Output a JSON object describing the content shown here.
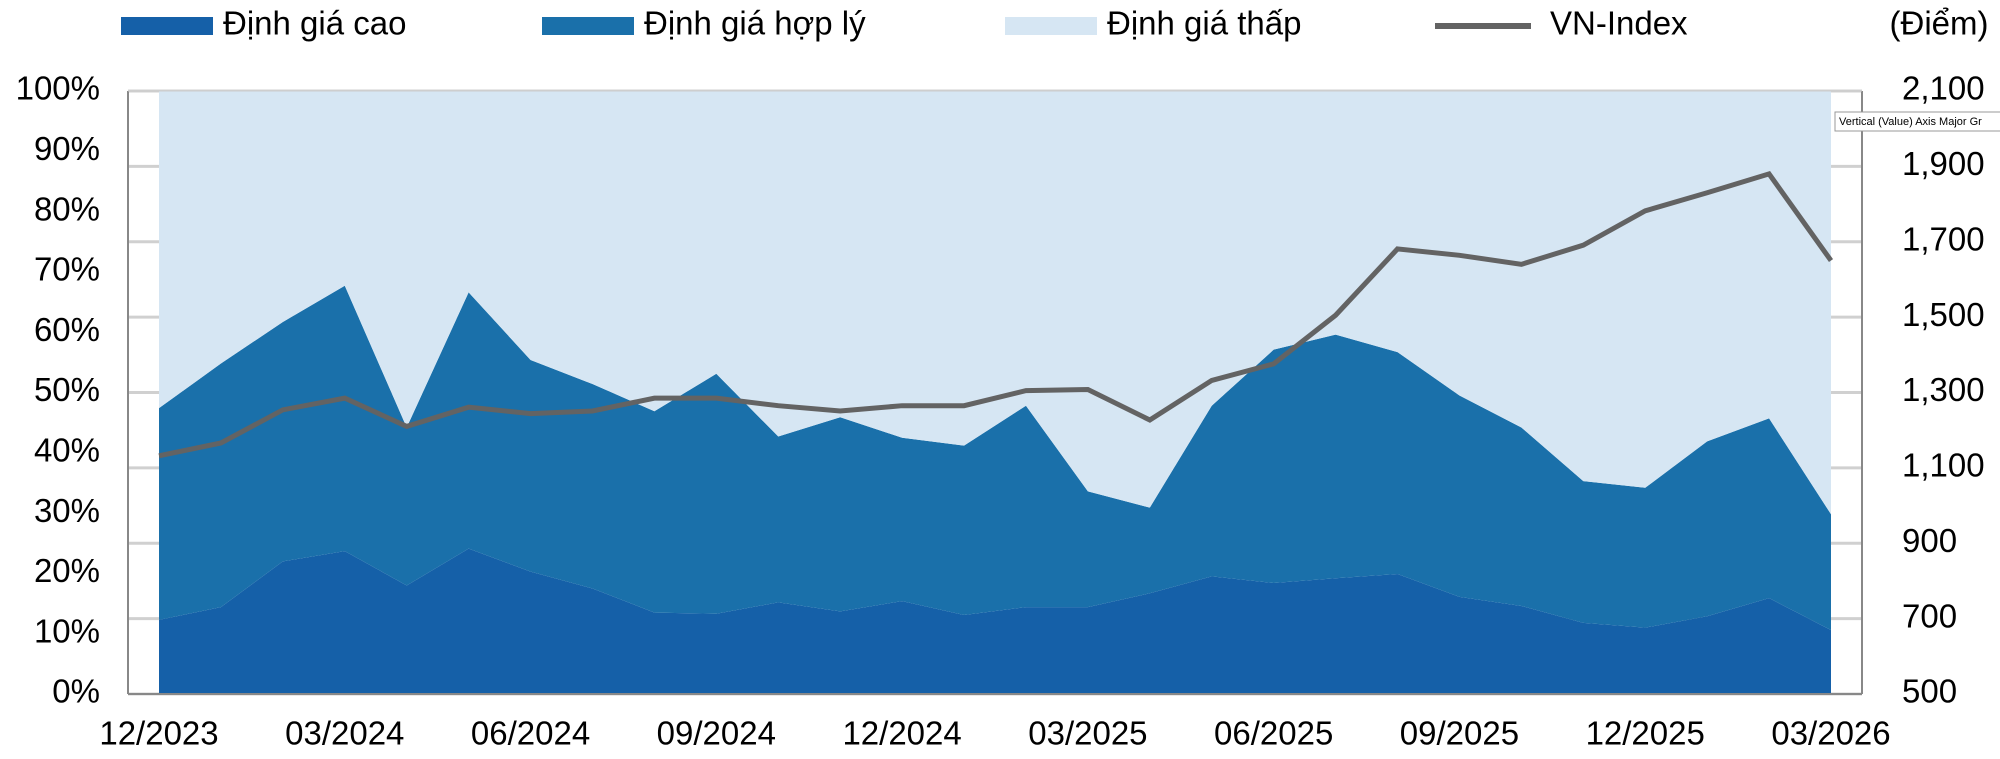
{
  "chart_data": {
    "type": "area",
    "categories": [
      "12/2023",
      null,
      null,
      "03/2024",
      null,
      null,
      "06/2024",
      null,
      null,
      "09/2024",
      null,
      null,
      "12/2024",
      null,
      null,
      "03/2025",
      null,
      null,
      "06/2025",
      null,
      null,
      "09/2025",
      null,
      null,
      "12/2025",
      null,
      null,
      "03/2026"
    ],
    "stacked": true,
    "series": [
      {
        "name": "Định giá cao",
        "color": "#1560a8",
        "values": [
          12.3,
          14.4,
          22,
          23.7,
          18,
          24.1,
          20.3,
          17.5,
          13.5,
          13.3,
          15.2,
          13.7,
          15.4,
          13.1,
          14.4,
          14.4,
          16.7,
          19.5,
          18.4,
          19.2,
          19.9,
          16.1,
          14.6,
          11.8,
          11,
          12.9,
          15.9,
          10.6
        ]
      },
      {
        "name": "Định giá hợp lý",
        "color": "#1a70aa",
        "values": [
          35.1,
          40.4,
          39.7,
          44.0,
          26.2,
          42.5,
          35.1,
          33.9,
          33.4,
          39.8,
          27.5,
          32.2,
          27.1,
          28.1,
          33.4,
          19.2,
          14.2,
          28.3,
          38.7,
          40.4,
          36.8,
          33.4,
          29.6,
          23.5,
          23.2,
          29.0,
          29.8,
          19.2
        ]
      },
      {
        "name": "Định giá thấp",
        "color": "#d6e6f3",
        "values": [
          52.6,
          45.2,
          38.3,
          32.3,
          55.8,
          33.4,
          44.6,
          48.6,
          53.1,
          46.9,
          57.3,
          54.1,
          57.5,
          58.8,
          52.2,
          66.4,
          69.1,
          52.2,
          42.9,
          40.4,
          43.3,
          50.5,
          55.8,
          64.7,
          65.8,
          58.1,
          54.3,
          70.2
        ]
      },
      {
        "name": "VN-Index",
        "color": "#636363",
        "type": "line",
        "axis": "y2",
        "values": [
          1132,
          1166,
          1254,
          1285,
          1210,
          1261,
          1244,
          1251,
          1285,
          1285,
          1265,
          1251,
          1265,
          1265,
          1305,
          1308,
          1227,
          1332,
          1376,
          1505,
          1681,
          1664,
          1640,
          1691,
          1782,
          1830,
          1880,
          1650
        ]
      }
    ],
    "ylim": [
      0,
      100
    ],
    "yticks": [
      {
        "value": 0,
        "label": "0%"
      },
      {
        "value": 10,
        "label": "10%"
      },
      {
        "value": 20,
        "label": "20%"
      },
      {
        "value": 30,
        "label": "30%"
      },
      {
        "value": 40,
        "label": "40%"
      },
      {
        "value": 50,
        "label": "50%"
      },
      {
        "value": 60,
        "label": "60%"
      },
      {
        "value": 70,
        "label": "70%"
      },
      {
        "value": 80,
        "label": "80%"
      },
      {
        "value": 90,
        "label": "90%"
      },
      {
        "value": 100,
        "label": "100%"
      }
    ],
    "y2label": "(Điểm)",
    "y2lim": [
      500,
      2100
    ],
    "y2ticks": [
      500,
      700,
      900,
      {
        "value": 1100,
        "label": "1,100"
      },
      {
        "value": 1300,
        "label": "1,300"
      },
      {
        "value": 1500,
        "label": "1,500"
      },
      {
        "value": 1700,
        "label": "1,700"
      },
      {
        "value": 1900,
        "label": "1,900"
      },
      {
        "value": 2100,
        "label": "2,100"
      }
    ],
    "grid": "y2",
    "legend": "top",
    "tooltip": "Vertical (Value) Axis Major Gr"
  }
}
